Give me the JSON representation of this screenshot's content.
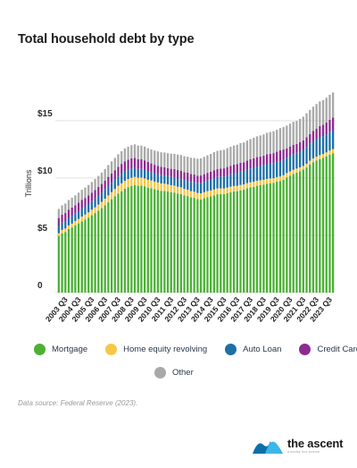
{
  "chart_data": {
    "type": "bar",
    "stacked": true,
    "title": "Total household debt by type",
    "xlabel": "",
    "ylabel": "Trillions",
    "ylim": [
      0,
      18.5
    ],
    "yticks": [
      0,
      5,
      10,
      15
    ],
    "ytick_labels": [
      "0",
      "$5",
      "$10",
      "$15"
    ],
    "grid": true,
    "legend_position": "bottom",
    "x_tick_labels": [
      "2003 Q3",
      "2004 Q3",
      "2005 Q3",
      "2006 Q3",
      "2007 Q3",
      "2008 Q3",
      "2009 Q3",
      "2010 Q3",
      "2011 Q3",
      "2012 Q3",
      "2013 Q3",
      "2014 Q3",
      "2015 Q3",
      "2016 Q3",
      "2017 Q3",
      "2018 Q3",
      "2019 Q3",
      "2020 Q3",
      "2021 Q3",
      "2022 Q3",
      "2023 Q3"
    ],
    "x": [
      "2003 Q1",
      "2003 Q2",
      "2003 Q3",
      "2003 Q4",
      "2004 Q1",
      "2004 Q2",
      "2004 Q3",
      "2004 Q4",
      "2005 Q1",
      "2005 Q2",
      "2005 Q3",
      "2005 Q4",
      "2006 Q1",
      "2006 Q2",
      "2006 Q3",
      "2006 Q4",
      "2007 Q1",
      "2007 Q2",
      "2007 Q3",
      "2007 Q4",
      "2008 Q1",
      "2008 Q2",
      "2008 Q3",
      "2008 Q4",
      "2009 Q1",
      "2009 Q2",
      "2009 Q3",
      "2009 Q4",
      "2010 Q1",
      "2010 Q2",
      "2010 Q3",
      "2010 Q4",
      "2011 Q1",
      "2011 Q2",
      "2011 Q3",
      "2011 Q4",
      "2012 Q1",
      "2012 Q2",
      "2012 Q3",
      "2012 Q4",
      "2013 Q1",
      "2013 Q2",
      "2013 Q3",
      "2013 Q4",
      "2014 Q1",
      "2014 Q2",
      "2014 Q3",
      "2014 Q4",
      "2015 Q1",
      "2015 Q2",
      "2015 Q3",
      "2015 Q4",
      "2016 Q1",
      "2016 Q2",
      "2016 Q3",
      "2016 Q4",
      "2017 Q1",
      "2017 Q2",
      "2017 Q3",
      "2017 Q4",
      "2018 Q1",
      "2018 Q2",
      "2018 Q3",
      "2018 Q4",
      "2019 Q1",
      "2019 Q2",
      "2019 Q3",
      "2019 Q4",
      "2020 Q1",
      "2020 Q2",
      "2020 Q3",
      "2020 Q4",
      "2021 Q1",
      "2021 Q2",
      "2021 Q3",
      "2021 Q4",
      "2022 Q1",
      "2022 Q2",
      "2022 Q3",
      "2022 Q4",
      "2023 Q1",
      "2023 Q2",
      "2023 Q3",
      "2023 Q4"
    ],
    "series": [
      {
        "name": "Mortgage",
        "color": "#4cb035",
        "values": [
          4.94,
          5.18,
          5.29,
          5.55,
          5.69,
          5.88,
          6.04,
          6.21,
          6.37,
          6.54,
          6.75,
          6.94,
          7.15,
          7.37,
          7.61,
          7.88,
          8.15,
          8.41,
          8.65,
          8.85,
          9.06,
          9.2,
          9.31,
          9.38,
          9.32,
          9.35,
          9.28,
          9.16,
          9.11,
          9.03,
          8.96,
          8.88,
          8.87,
          8.82,
          8.76,
          8.73,
          8.65,
          8.6,
          8.48,
          8.42,
          8.31,
          8.27,
          8.16,
          8.14,
          8.24,
          8.33,
          8.39,
          8.48,
          8.58,
          8.59,
          8.59,
          8.67,
          8.76,
          8.83,
          8.85,
          8.92,
          8.98,
          9.1,
          9.17,
          9.23,
          9.32,
          9.37,
          9.42,
          9.5,
          9.55,
          9.58,
          9.68,
          9.74,
          9.85,
          10.05,
          10.21,
          10.35,
          10.47,
          10.6,
          10.73,
          10.92,
          11.19,
          11.38,
          11.53,
          11.65,
          11.75,
          11.89,
          12.04,
          12.16
        ]
      },
      {
        "name": "Home equity revolving",
        "color": "#f7c747",
        "values": [
          0.24,
          0.29,
          0.3,
          0.31,
          0.33,
          0.36,
          0.39,
          0.42,
          0.44,
          0.46,
          0.48,
          0.5,
          0.53,
          0.55,
          0.58,
          0.6,
          0.62,
          0.63,
          0.67,
          0.68,
          0.69,
          0.7,
          0.71,
          0.71,
          0.7,
          0.69,
          0.68,
          0.68,
          0.67,
          0.66,
          0.65,
          0.64,
          0.63,
          0.62,
          0.61,
          0.6,
          0.59,
          0.58,
          0.57,
          0.56,
          0.54,
          0.53,
          0.53,
          0.52,
          0.52,
          0.52,
          0.52,
          0.51,
          0.51,
          0.5,
          0.49,
          0.49,
          0.48,
          0.47,
          0.47,
          0.47,
          0.46,
          0.45,
          0.45,
          0.44,
          0.44,
          0.43,
          0.42,
          0.42,
          0.41,
          0.4,
          0.4,
          0.39,
          0.39,
          0.38,
          0.37,
          0.36,
          0.35,
          0.33,
          0.32,
          0.32,
          0.32,
          0.33,
          0.33,
          0.34,
          0.34,
          0.34,
          0.35,
          0.36
        ]
      },
      {
        "name": "Auto Loan",
        "color": "#1e6fa8",
        "values": [
          0.64,
          0.64,
          0.65,
          0.66,
          0.68,
          0.69,
          0.71,
          0.72,
          0.72,
          0.73,
          0.75,
          0.77,
          0.78,
          0.79,
          0.81,
          0.81,
          0.82,
          0.82,
          0.82,
          0.82,
          0.82,
          0.81,
          0.8,
          0.79,
          0.77,
          0.75,
          0.74,
          0.73,
          0.71,
          0.7,
          0.71,
          0.72,
          0.72,
          0.72,
          0.73,
          0.73,
          0.75,
          0.76,
          0.78,
          0.78,
          0.81,
          0.83,
          0.85,
          0.88,
          0.91,
          0.93,
          0.96,
          0.99,
          1.0,
          1.03,
          1.05,
          1.07,
          1.09,
          1.12,
          1.14,
          1.16,
          1.17,
          1.19,
          1.21,
          1.22,
          1.24,
          1.25,
          1.27,
          1.28,
          1.31,
          1.32,
          1.33,
          1.35,
          1.36,
          1.34,
          1.36,
          1.37,
          1.38,
          1.4,
          1.44,
          1.46,
          1.47,
          1.49,
          1.52,
          1.55,
          1.56,
          1.57,
          1.6,
          1.61
        ]
      },
      {
        "name": "Credit Card",
        "color": "#8b2c8f",
        "values": [
          0.69,
          0.69,
          0.7,
          0.72,
          0.72,
          0.69,
          0.7,
          0.73,
          0.73,
          0.74,
          0.74,
          0.75,
          0.75,
          0.77,
          0.78,
          0.81,
          0.81,
          0.82,
          0.84,
          0.88,
          0.88,
          0.89,
          0.89,
          0.88,
          0.86,
          0.84,
          0.84,
          0.83,
          0.78,
          0.76,
          0.74,
          0.73,
          0.71,
          0.7,
          0.7,
          0.71,
          0.7,
          0.69,
          0.68,
          0.7,
          0.68,
          0.67,
          0.67,
          0.68,
          0.66,
          0.67,
          0.68,
          0.7,
          0.68,
          0.69,
          0.71,
          0.73,
          0.73,
          0.74,
          0.75,
          0.78,
          0.76,
          0.77,
          0.8,
          0.83,
          0.82,
          0.83,
          0.84,
          0.87,
          0.85,
          0.87,
          0.88,
          0.93,
          0.89,
          0.82,
          0.81,
          0.82,
          0.77,
          0.79,
          0.8,
          0.86,
          0.84,
          0.89,
          0.93,
          0.99,
          0.99,
          1.03,
          1.08,
          1.13
        ]
      },
      {
        "name": "Other",
        "color": "#a9a9a9",
        "values": [
          0.79,
          0.81,
          0.83,
          0.84,
          0.85,
          0.86,
          0.88,
          0.89,
          0.9,
          0.92,
          0.93,
          0.95,
          0.97,
          0.99,
          1.0,
          1.03,
          1.05,
          1.07,
          1.09,
          1.1,
          1.12,
          1.13,
          1.15,
          1.17,
          1.18,
          1.19,
          1.2,
          1.2,
          1.22,
          1.24,
          1.26,
          1.27,
          1.29,
          1.3,
          1.32,
          1.34,
          1.35,
          1.37,
          1.39,
          1.4,
          1.43,
          1.44,
          1.47,
          1.49,
          1.51,
          1.52,
          1.55,
          1.57,
          1.6,
          1.61,
          1.62,
          1.64,
          1.66,
          1.67,
          1.69,
          1.71,
          1.73,
          1.75,
          1.77,
          1.79,
          1.81,
          1.83,
          1.85,
          1.87,
          1.89,
          1.91,
          1.92,
          1.94,
          1.96,
          1.98,
          1.99,
          2.0,
          2.01,
          2.03,
          2.06,
          2.09,
          2.12,
          2.13,
          2.14,
          2.15,
          2.16,
          2.17,
          2.19,
          2.2
        ]
      }
    ]
  },
  "source_note": "Data source: Federal Reserve (2023).",
  "brand": {
    "name": "the ascent",
    "tagline": "a motley fool service",
    "logo_colors": [
      "#0d6fa8",
      "#3bb6e8"
    ]
  }
}
